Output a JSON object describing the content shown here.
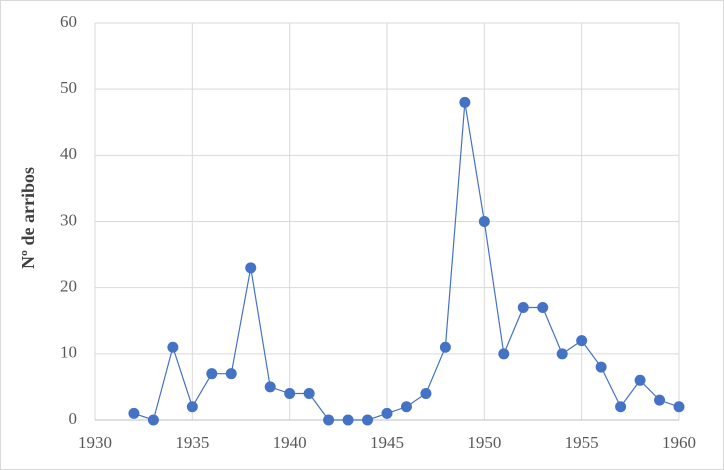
{
  "chart_data": {
    "type": "line",
    "y_label": "Nº de arribos",
    "x": [
      1932,
      1933,
      1934,
      1935,
      1936,
      1937,
      1938,
      1939,
      1940,
      1941,
      1942,
      1943,
      1944,
      1945,
      1946,
      1947,
      1948,
      1949,
      1950,
      1951,
      1952,
      1953,
      1954,
      1955,
      1956,
      1957,
      1958,
      1959,
      1960
    ],
    "values": [
      1,
      0,
      11,
      2,
      7,
      7,
      23,
      5,
      4,
      4,
      0,
      0,
      0,
      1,
      2,
      4,
      11,
      48,
      30,
      10,
      17,
      17,
      10,
      12,
      8,
      2,
      6,
      3,
      2
    ],
    "color": "#4472c4",
    "xlim": [
      1930,
      1960
    ],
    "xticks": [
      1930,
      1935,
      1940,
      1945,
      1950,
      1955,
      1960
    ],
    "ylim": [
      0,
      60
    ],
    "yticks": [
      0,
      10,
      20,
      30,
      40,
      50,
      60
    ],
    "grid": true,
    "markers": true
  }
}
